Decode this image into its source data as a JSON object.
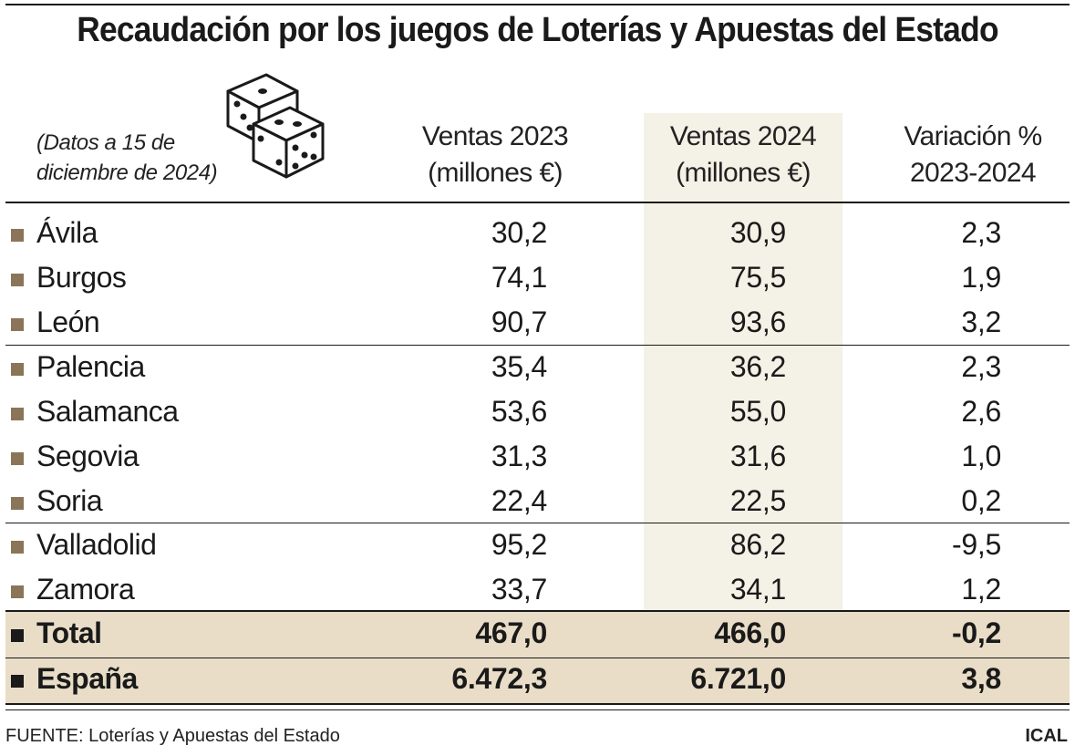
{
  "chart_data": {
    "type": "table",
    "title": "Recaudación por los juegos de Loterías y Apuestas del Estado",
    "note": [
      "(Datos a 15 de",
      "diciembre de 2024)"
    ],
    "columns": [
      {
        "line1": "Ventas 2023",
        "line2": "(millones €)"
      },
      {
        "line1": "Ventas 2024",
        "line2": "(millones €)"
      },
      {
        "line1": "Variación %",
        "line2": "2023-2024"
      }
    ],
    "rows": [
      {
        "name": "Ávila",
        "v2023": "30,2",
        "v2024": "30,9",
        "var": "2,3"
      },
      {
        "name": "Burgos",
        "v2023": "74,1",
        "v2024": "75,5",
        "var": "1,9"
      },
      {
        "name": "León",
        "v2023": "90,7",
        "v2024": "93,6",
        "var": "3,2"
      },
      {
        "name": "Palencia",
        "v2023": "35,4",
        "v2024": "36,2",
        "var": "2,3"
      },
      {
        "name": "Salamanca",
        "v2023": "53,6",
        "v2024": "55,0",
        "var": "2,6"
      },
      {
        "name": "Segovia",
        "v2023": "31,3",
        "v2024": "31,6",
        "var": "1,0"
      },
      {
        "name": "Soria",
        "v2023": "22,4",
        "v2024": "22,5",
        "var": "0,2"
      },
      {
        "name": "Valladolid",
        "v2023": "95,2",
        "v2024": "86,2",
        "var": "-9,5"
      },
      {
        "name": "Zamora",
        "v2023": "33,7",
        "v2024": "34,1",
        "var": "1,2"
      }
    ],
    "totals": [
      {
        "name": "Total",
        "v2023": "467,0",
        "v2024": "466,0",
        "var": "-0,2"
      },
      {
        "name": "España",
        "v2023": "6.472,3",
        "v2024": "6.721,0",
        "var": "3,8"
      }
    ]
  },
  "footer": {
    "source": "FUENTE: Loterías y Apuestas del Estado",
    "brand": "ICAL"
  },
  "icons": {
    "decoration": "dice-icon"
  },
  "colors": {
    "highlight_column": "#f4f1e6",
    "total_band": "#e9ddc8",
    "bullet": "#8a7558",
    "text": "#1a1a1a"
  }
}
